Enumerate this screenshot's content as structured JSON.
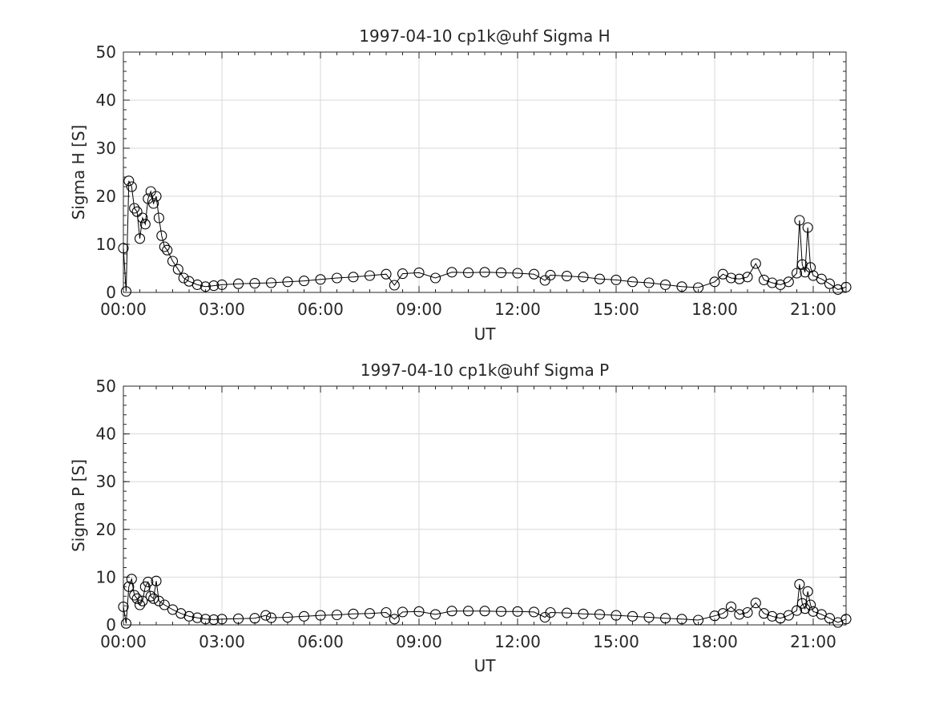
{
  "chart_data": [
    {
      "type": "line",
      "title": "1997-04-10  cp1k@uhf Sigma H",
      "xlabel": "UT",
      "ylabel": "Sigma H [S]",
      "xlim": [
        "00:00",
        "22:00"
      ],
      "ylim": [
        0,
        50
      ],
      "grid": true,
      "marker": "open-circle",
      "x_ticks": [
        "00:00",
        "03:00",
        "06:00",
        "09:00",
        "12:00",
        "15:00",
        "18:00",
        "21:00"
      ],
      "y_ticks": [
        "0",
        "10",
        "20",
        "30",
        "40",
        "50"
      ],
      "series": [
        {
          "x": [
            "00:00",
            "00:05",
            "00:10",
            "00:15",
            "00:20",
            "00:25",
            "00:30",
            "00:35",
            "00:40",
            "00:45",
            "00:50",
            "00:55",
            "01:00",
            "01:05",
            "01:10",
            "01:15",
            "01:20",
            "01:30",
            "01:40",
            "01:50",
            "02:00",
            "02:15",
            "02:30",
            "02:45",
            "03:00",
            "03:30",
            "04:00",
            "04:30",
            "05:00",
            "05:30",
            "06:00",
            "06:30",
            "07:00",
            "07:30",
            "08:00",
            "08:15",
            "08:30",
            "09:00",
            "09:30",
            "10:00",
            "10:30",
            "11:00",
            "11:30",
            "12:00",
            "12:30",
            "12:50",
            "13:00",
            "13:30",
            "14:00",
            "14:30",
            "15:00",
            "15:30",
            "16:00",
            "16:30",
            "17:00",
            "17:30",
            "18:00",
            "18:15",
            "18:30",
            "18:45",
            "19:00",
            "19:15",
            "19:30",
            "19:45",
            "20:00",
            "20:15",
            "20:30",
            "20:35",
            "20:40",
            "20:45",
            "20:50",
            "20:55",
            "21:00",
            "21:15",
            "21:30",
            "21:45",
            "22:00"
          ],
          "y": [
            9.2,
            0.2,
            23.2,
            22.0,
            17.5,
            16.8,
            11.2,
            15.5,
            14.2,
            19.5,
            21.0,
            18.5,
            20.0,
            15.5,
            11.8,
            9.5,
            8.8,
            6.5,
            4.8,
            3.0,
            2.3,
            1.6,
            1.2,
            1.4,
            1.6,
            1.8,
            1.9,
            2.0,
            2.2,
            2.4,
            2.7,
            3.0,
            3.2,
            3.5,
            3.8,
            1.5,
            3.9,
            4.1,
            3.0,
            4.2,
            4.1,
            4.2,
            4.1,
            4.0,
            3.8,
            2.5,
            3.6,
            3.4,
            3.2,
            2.8,
            2.6,
            2.2,
            2.0,
            1.6,
            1.2,
            1.0,
            2.2,
            3.8,
            3.0,
            2.8,
            3.2,
            6.0,
            2.6,
            2.0,
            1.6,
            2.2,
            4.0,
            15.0,
            5.8,
            4.2,
            13.5,
            5.2,
            3.5,
            2.8,
            1.8,
            0.6,
            1.1
          ]
        }
      ]
    },
    {
      "type": "line",
      "title": "1997-04-10  cp1k@uhf Sigma P",
      "xlabel": "UT",
      "ylabel": "Sigma P [S]",
      "xlim": [
        "00:00",
        "22:00"
      ],
      "ylim": [
        0,
        50
      ],
      "grid": true,
      "marker": "open-circle",
      "x_ticks": [
        "00:00",
        "03:00",
        "06:00",
        "09:00",
        "12:00",
        "15:00",
        "18:00",
        "21:00"
      ],
      "y_ticks": [
        "0",
        "10",
        "20",
        "30",
        "40",
        "50"
      ],
      "series": [
        {
          "x": [
            "00:00",
            "00:05",
            "00:10",
            "00:15",
            "00:20",
            "00:25",
            "00:30",
            "00:35",
            "00:40",
            "00:45",
            "00:50",
            "00:55",
            "01:00",
            "01:05",
            "01:15",
            "01:30",
            "01:45",
            "02:00",
            "02:15",
            "02:30",
            "02:45",
            "03:00",
            "03:30",
            "04:00",
            "04:20",
            "04:30",
            "05:00",
            "05:30",
            "06:00",
            "06:30",
            "07:00",
            "07:30",
            "08:00",
            "08:15",
            "08:30",
            "09:00",
            "09:30",
            "10:00",
            "10:30",
            "11:00",
            "11:30",
            "12:00",
            "12:30",
            "12:50",
            "13:00",
            "13:30",
            "14:00",
            "14:30",
            "15:00",
            "15:30",
            "16:00",
            "16:30",
            "17:00",
            "17:30",
            "18:00",
            "18:15",
            "18:30",
            "18:45",
            "19:00",
            "19:15",
            "19:30",
            "19:45",
            "20:00",
            "20:15",
            "20:30",
            "20:35",
            "20:40",
            "20:45",
            "20:50",
            "20:55",
            "21:00",
            "21:15",
            "21:30",
            "21:45",
            "22:00"
          ],
          "y": [
            3.8,
            0.3,
            8.0,
            9.6,
            6.2,
            5.5,
            4.2,
            5.0,
            8.0,
            9.0,
            6.0,
            5.5,
            9.2,
            5.0,
            4.2,
            3.2,
            2.4,
            1.8,
            1.5,
            1.2,
            1.1,
            1.2,
            1.3,
            1.4,
            2.0,
            1.5,
            1.6,
            1.8,
            2.0,
            2.1,
            2.3,
            2.4,
            2.6,
            1.2,
            2.7,
            2.8,
            2.2,
            2.9,
            2.9,
            2.9,
            2.8,
            2.8,
            2.7,
            1.6,
            2.6,
            2.5,
            2.3,
            2.2,
            2.0,
            1.8,
            1.6,
            1.4,
            1.2,
            1.0,
            1.9,
            2.4,
            3.8,
            2.2,
            2.6,
            4.6,
            2.4,
            1.8,
            1.4,
            2.0,
            3.0,
            8.5,
            4.5,
            3.4,
            7.0,
            4.2,
            2.8,
            2.2,
            1.4,
            0.5,
            1.2
          ]
        }
      ]
    }
  ]
}
